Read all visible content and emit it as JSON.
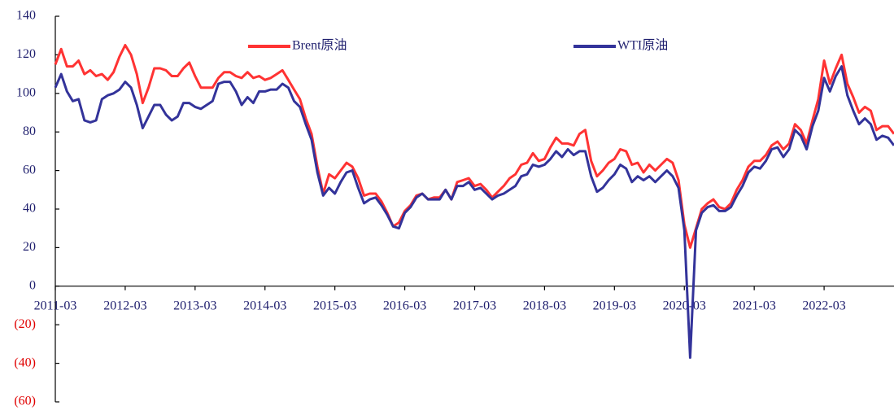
{
  "chart_data": {
    "type": "line",
    "x": [
      "2011-03",
      "2011-04",
      "2011-05",
      "2011-06",
      "2011-07",
      "2011-08",
      "2011-09",
      "2011-10",
      "2011-11",
      "2011-12",
      "2012-01",
      "2012-02",
      "2012-03",
      "2012-04",
      "2012-05",
      "2012-06",
      "2012-07",
      "2012-08",
      "2012-09",
      "2012-10",
      "2012-11",
      "2012-12",
      "2013-01",
      "2013-02",
      "2013-03",
      "2013-04",
      "2013-05",
      "2013-06",
      "2013-07",
      "2013-08",
      "2013-09",
      "2013-10",
      "2013-11",
      "2013-12",
      "2014-01",
      "2014-02",
      "2014-03",
      "2014-04",
      "2014-05",
      "2014-06",
      "2014-07",
      "2014-08",
      "2014-09",
      "2014-10",
      "2014-11",
      "2014-12",
      "2015-01",
      "2015-02",
      "2015-03",
      "2015-04",
      "2015-05",
      "2015-06",
      "2015-07",
      "2015-08",
      "2015-09",
      "2015-10",
      "2015-11",
      "2015-12",
      "2016-01",
      "2016-02",
      "2016-03",
      "2016-04",
      "2016-05",
      "2016-06",
      "2016-07",
      "2016-08",
      "2016-09",
      "2016-10",
      "2016-11",
      "2016-12",
      "2017-01",
      "2017-02",
      "2017-03",
      "2017-04",
      "2017-05",
      "2017-06",
      "2017-07",
      "2017-08",
      "2017-09",
      "2017-10",
      "2017-11",
      "2017-12",
      "2018-01",
      "2018-02",
      "2018-03",
      "2018-04",
      "2018-05",
      "2018-06",
      "2018-07",
      "2018-08",
      "2018-09",
      "2018-10",
      "2018-11",
      "2018-12",
      "2019-01",
      "2019-02",
      "2019-03",
      "2019-04",
      "2019-05",
      "2019-06",
      "2019-07",
      "2019-08",
      "2019-09",
      "2019-10",
      "2019-11",
      "2019-12",
      "2020-01",
      "2020-02",
      "2020-03",
      "2020-04",
      "2020-05",
      "2020-06",
      "2020-07",
      "2020-08",
      "2020-09",
      "2020-10",
      "2020-11",
      "2020-12",
      "2021-01",
      "2021-02",
      "2021-03",
      "2021-04",
      "2021-05",
      "2021-06",
      "2021-07",
      "2021-08",
      "2021-09",
      "2021-10",
      "2021-11",
      "2021-12",
      "2022-01",
      "2022-02",
      "2022-03",
      "2022-04",
      "2022-05",
      "2022-06",
      "2022-07",
      "2022-08",
      "2022-09",
      "2022-10",
      "2022-11",
      "2022-12",
      "2023-01",
      "2023-02",
      "2023-03"
    ],
    "xlim": [
      "2011-03",
      "2023-03"
    ],
    "xticks": [
      "2011-03",
      "2012-03",
      "2013-03",
      "2014-03",
      "2015-03",
      "2016-03",
      "2017-03",
      "2018-03",
      "2019-03",
      "2020-03",
      "2021-03",
      "2022-03"
    ],
    "series": [
      {
        "name": "Brent原油",
        "color": "#ff3333",
        "values": [
          115,
          123,
          114,
          114,
          117,
          110,
          112,
          109,
          110,
          107,
          111,
          119,
          125,
          120,
          110,
          95,
          103,
          113,
          113,
          112,
          109,
          109,
          113,
          116,
          109,
          103,
          103,
          103,
          108,
          111,
          111,
          109,
          108,
          111,
          108,
          109,
          107,
          108,
          110,
          112,
          107,
          102,
          97,
          87,
          79,
          62,
          48,
          58,
          56,
          60,
          64,
          62,
          56,
          47,
          48,
          48,
          44,
          38,
          31,
          33,
          39,
          42,
          47,
          48,
          45,
          46,
          46,
          50,
          45,
          54,
          55,
          56,
          52,
          53,
          50,
          46,
          49,
          52,
          56,
          58,
          63,
          64,
          69,
          65,
          66,
          72,
          77,
          74,
          74,
          73,
          79,
          81,
          65,
          57,
          60,
          64,
          66,
          71,
          70,
          63,
          64,
          59,
          63,
          60,
          63,
          66,
          64,
          55,
          32,
          20,
          30,
          40,
          43,
          45,
          41,
          40,
          43,
          50,
          55,
          62,
          65,
          65,
          68,
          73,
          75,
          71,
          74,
          84,
          81,
          74,
          86,
          97,
          117,
          105,
          113,
          120,
          105,
          98,
          90,
          93,
          91,
          81,
          83,
          83,
          79
        ]
      },
      {
        "name": "WTI原油",
        "color": "#33339a",
        "values": [
          103,
          110,
          101,
          96,
          97,
          86,
          85,
          86,
          97,
          99,
          100,
          102,
          106,
          103,
          94,
          82,
          88,
          94,
          94,
          89,
          86,
          88,
          95,
          95,
          93,
          92,
          94,
          96,
          105,
          106,
          106,
          101,
          94,
          98,
          95,
          101,
          101,
          102,
          102,
          105,
          103,
          96,
          93,
          84,
          76,
          59,
          47,
          51,
          48,
          54,
          59,
          60,
          51,
          43,
          45,
          46,
          42,
          37,
          31,
          30,
          38,
          41,
          46,
          48,
          45,
          45,
          45,
          50,
          45,
          52,
          52,
          54,
          50,
          51,
          48,
          45,
          47,
          48,
          50,
          52,
          57,
          58,
          63,
          62,
          63,
          66,
          70,
          67,
          71,
          68,
          70,
          70,
          57,
          49,
          51,
          55,
          58,
          63,
          61,
          54,
          57,
          55,
          57,
          54,
          57,
          60,
          57,
          51,
          29,
          -37,
          29,
          38,
          41,
          42,
          39,
          39,
          41,
          47,
          52,
          59,
          62,
          61,
          65,
          71,
          72,
          67,
          71,
          81,
          78,
          71,
          83,
          91,
          108,
          101,
          109,
          114,
          99,
          91,
          84,
          87,
          84,
          76,
          78,
          77,
          73
        ]
      }
    ],
    "ylim": [
      -60,
      140
    ],
    "yticks": [
      {
        "value": -60,
        "label": "(60)"
      },
      {
        "value": -40,
        "label": "(40)"
      },
      {
        "value": -20,
        "label": "(20)"
      },
      0,
      20,
      40,
      60,
      80,
      100,
      120,
      140
    ],
    "negative_tick_color": "#e00000",
    "grid": false
  }
}
